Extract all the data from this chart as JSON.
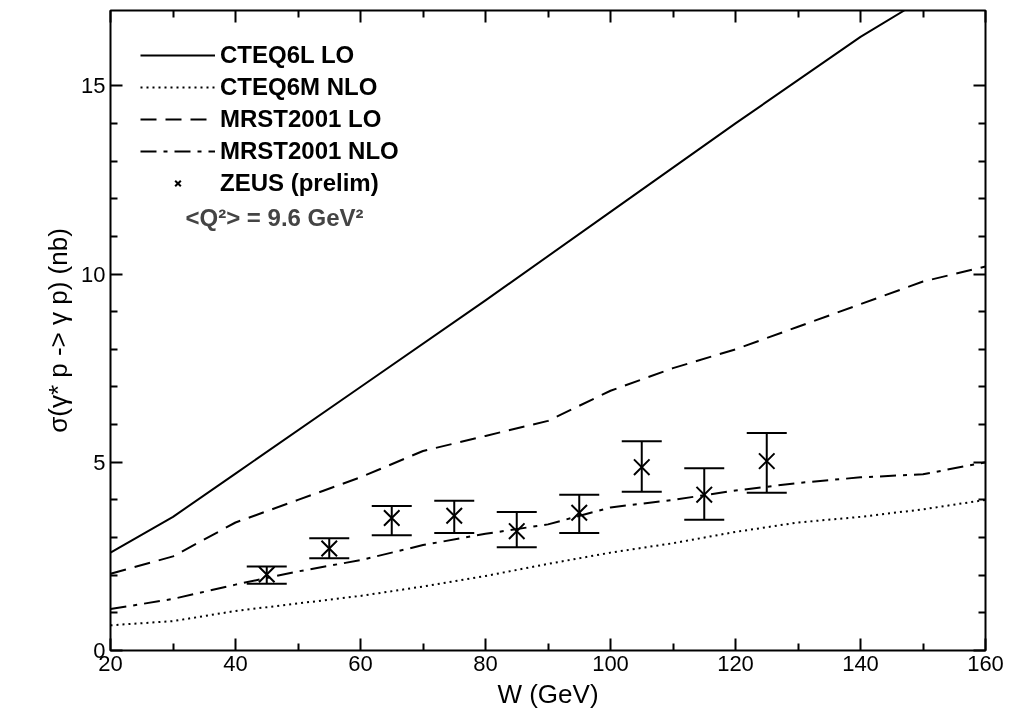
{
  "chart_data": {
    "type": "line",
    "xlabel": "W (GeV)",
    "ylabel": "σ(γ* p -> γ p) (nb)",
    "xlim": [
      20,
      160
    ],
    "ylim": [
      0,
      17
    ],
    "xticks": [
      20,
      40,
      60,
      80,
      100,
      120,
      140,
      160
    ],
    "yticks": [
      0,
      5,
      10,
      15
    ],
    "grid": false,
    "legend": "top left",
    "annotations": [
      "<Q²> = 9.6 GeV²"
    ],
    "series": [
      {
        "name": "CTEQ6L LO",
        "color": "#000000",
        "line_style": "solid",
        "x": [
          20,
          30,
          40,
          60,
          80,
          100,
          120,
          140,
          147
        ],
        "values": [
          2.6,
          3.55,
          4.7,
          7.0,
          9.3,
          11.65,
          14.0,
          16.3,
          17.0
        ]
      },
      {
        "name": "CTEQ6M NLO",
        "color": "#000000",
        "line_style": "dotted",
        "x": [
          20,
          30,
          40,
          50,
          60,
          70,
          80,
          90,
          100,
          110,
          120,
          130,
          140,
          150,
          160
        ],
        "values": [
          0.67,
          0.78,
          1.05,
          1.25,
          1.45,
          1.7,
          1.98,
          2.3,
          2.6,
          2.85,
          3.15,
          3.4,
          3.55,
          3.75,
          4.0
        ]
      },
      {
        "name": "MRST2001 LO",
        "color": "#000000",
        "line_style": "dashed",
        "x": [
          20,
          30,
          40,
          50,
          60,
          70,
          80,
          90,
          100,
          110,
          120,
          130,
          140,
          150,
          160
        ],
        "values": [
          2.04,
          2.5,
          3.4,
          4.0,
          4.6,
          5.3,
          5.7,
          6.1,
          6.9,
          7.5,
          8.0,
          8.6,
          9.2,
          9.8,
          10.2
        ]
      },
      {
        "name": "MRST2001 NLO",
        "color": "#000000",
        "line_style": "dashdot",
        "x": [
          20,
          30,
          40,
          50,
          60,
          70,
          80,
          90,
          100,
          110,
          120,
          130,
          140,
          150,
          160
        ],
        "values": [
          1.1,
          1.37,
          1.75,
          2.1,
          2.4,
          2.8,
          3.1,
          3.35,
          3.8,
          4.0,
          4.25,
          4.45,
          4.6,
          4.68,
          5.0
        ]
      },
      {
        "name": "ZEUS (prelim)",
        "type": "scatter",
        "marker": "cross",
        "color": "#000000",
        "x": [
          45,
          55,
          65,
          75,
          85,
          95,
          105,
          115,
          125
        ],
        "values": [
          2.02,
          2.71,
          3.52,
          3.58,
          3.17,
          3.66,
          4.87,
          4.14,
          5.03
        ],
        "errors": [
          [
            1.77,
            2.23
          ],
          [
            2.45,
            2.98
          ],
          [
            3.06,
            3.84
          ],
          [
            3.12,
            3.98
          ],
          [
            2.74,
            3.68
          ],
          [
            3.12,
            4.14
          ],
          [
            4.22,
            5.56
          ],
          [
            3.47,
            4.84
          ],
          [
            4.19,
            5.78
          ]
        ]
      }
    ]
  }
}
